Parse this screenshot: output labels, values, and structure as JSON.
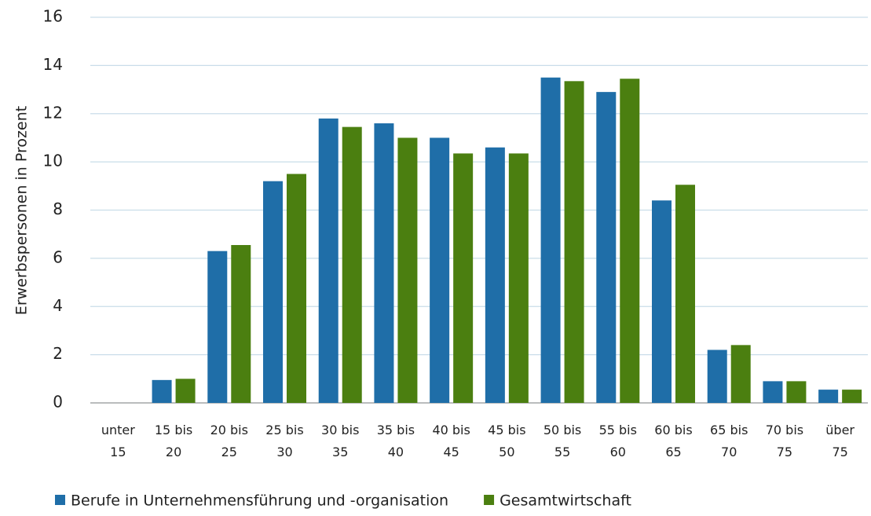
{
  "chart_data": {
    "type": "bar",
    "y_label": "Erwerbspersonen in Prozent",
    "categories": [
      "unter 15",
      "15 bis 20",
      "20 bis 25",
      "25 bis 30",
      "30 bis 35",
      "35 bis 40",
      "40 bis 45",
      "45 bis 50",
      "50 bis 55",
      "55 bis 60",
      "60 bis 65",
      "65 bis 70",
      "70 bis 75",
      "über 75"
    ],
    "series": [
      {
        "name": "Berufe in Unternehmensführung und -organisation",
        "color": "#1f6ea8",
        "values": [
          0,
          0.95,
          6.3,
          9.2,
          11.8,
          11.6,
          11.0,
          10.6,
          13.5,
          12.9,
          8.4,
          2.2,
          0.9,
          0.55
        ]
      },
      {
        "name": "Gesamtwirtschaft",
        "color": "#4b7f10",
        "values": [
          0,
          1.0,
          6.55,
          9.5,
          11.45,
          11.0,
          10.35,
          10.35,
          13.35,
          13.45,
          9.05,
          2.4,
          0.9,
          0.55
        ]
      }
    ],
    "ylim": [
      0,
      16
    ],
    "yticks": [
      0,
      2,
      4,
      6,
      8,
      10,
      12,
      14,
      16
    ],
    "grid": true
  }
}
